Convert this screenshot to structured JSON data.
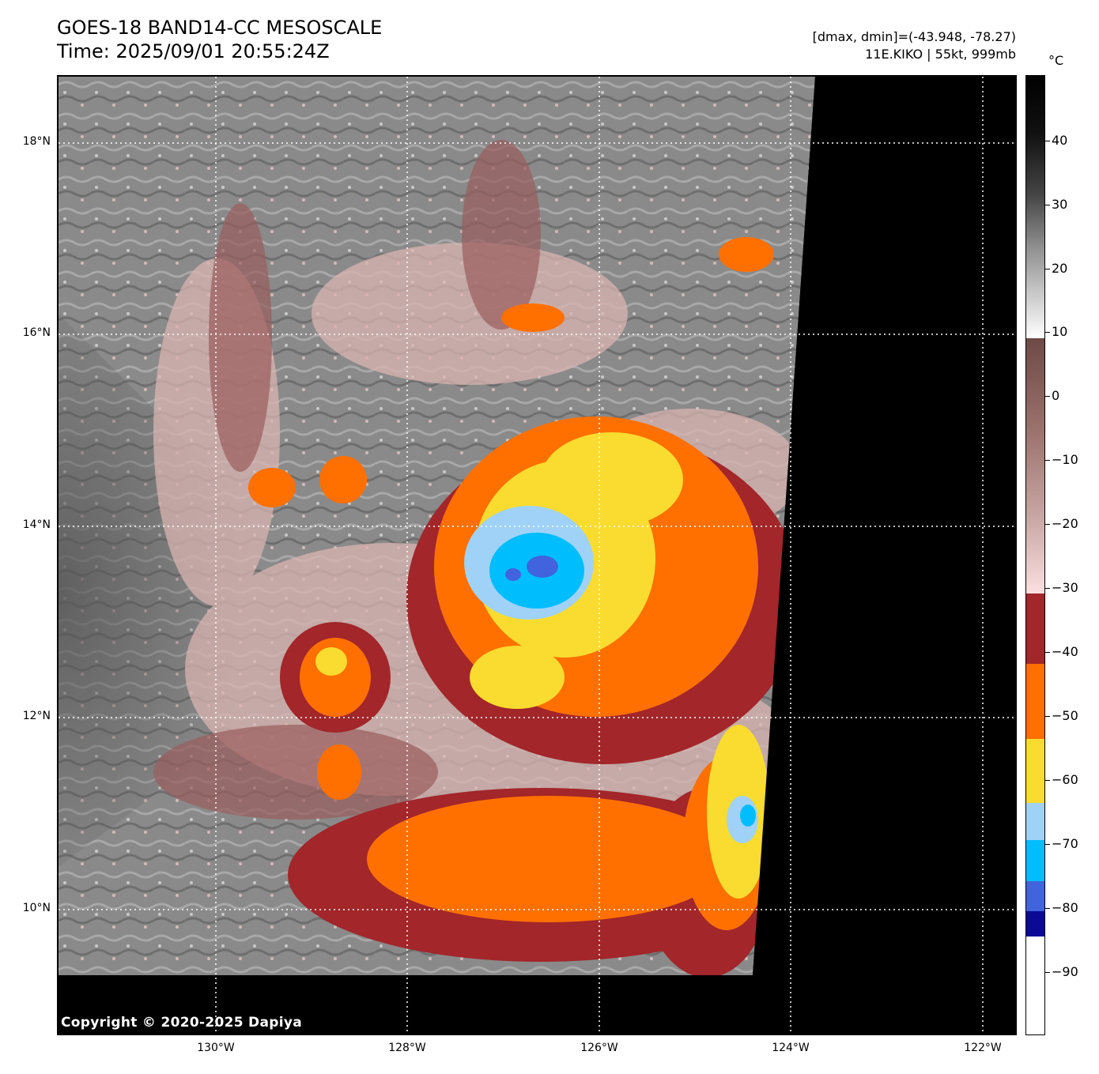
{
  "header": {
    "title": "GOES-18 BAND14-CC MESOSCALE",
    "time": "Time: 2025/09/01 20:55:24Z",
    "range": "[dmax, dmin]=(-43.948, -78.27)",
    "storm": "11E.KIKO | 55kt, 999mb"
  },
  "map": {
    "copyright": "Copyright © 2020-2025 Dapiya",
    "lat_labels": [
      "18°N",
      "16°N",
      "14°N",
      "12°N",
      "10°N"
    ],
    "lon_labels": [
      "130°W",
      "128°W",
      "126°W",
      "124°W",
      "122°W"
    ],
    "storm_center": {
      "lat": 13.6,
      "lon": -127.0
    },
    "colors": {
      "no_data": "#000000",
      "warm_cloud": "#8a8a8a",
      "minus_30": "#a2262a",
      "minus_40": "#ff7000",
      "minus_50": "#f9dc2f",
      "minus_60": "#a0d2f7",
      "minus_70": "#00b5ff",
      "minus_80": "#4063dc"
    }
  },
  "colorbar": {
    "unit": "°C",
    "tick_labels": [
      "40",
      "30",
      "20",
      "10",
      "0",
      "−10",
      "−20",
      "−30",
      "−40",
      "−50",
      "−60",
      "−70",
      "−80",
      "−90"
    ],
    "segments": [
      {
        "from": 50,
        "to": 9,
        "color": "gradient-gray"
      },
      {
        "from": 9,
        "to": -31,
        "color": "gradient-brown-pink"
      },
      {
        "from": -31,
        "to": -42,
        "color": "#a2262a"
      },
      {
        "from": -42,
        "to": -52,
        "color": "#ff7000"
      },
      {
        "from": -52,
        "to": -62,
        "color": "#f9dc2f"
      },
      {
        "from": -62,
        "to": -68,
        "color": "#a0d2f7"
      },
      {
        "from": -68,
        "to": -74,
        "color": "#00bdfd"
      },
      {
        "from": -74,
        "to": -79,
        "color": "#4163dd"
      },
      {
        "from": -79,
        "to": -83,
        "color": "#0a0a96"
      },
      {
        "from": -83,
        "to": -100,
        "color": "#ffffff"
      }
    ]
  }
}
